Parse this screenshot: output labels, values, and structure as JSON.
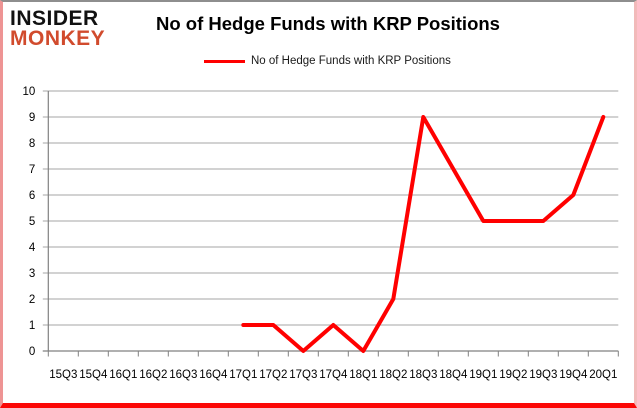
{
  "logo": {
    "line1": "INSIDER",
    "line2": "MONKEY"
  },
  "header": {
    "title": "No of Hedge Funds with KRP Positions"
  },
  "legend": {
    "label": "No of Hedge Funds with KRP Positions"
  },
  "colors": {
    "line": "#ff0000",
    "logo_accent": "#d14b2d",
    "grid": "#a6a6a6",
    "axis": "#808080",
    "border_bottom": "#fb0705"
  },
  "chart_data": {
    "type": "line",
    "title": "No of Hedge Funds with KRP Positions",
    "xlabel": "",
    "ylabel": "",
    "ylim": [
      0,
      10
    ],
    "ytick_step": 1,
    "grid": true,
    "legend_position": "top",
    "categories": [
      "15Q3",
      "15Q4",
      "16Q1",
      "16Q2",
      "16Q3",
      "16Q4",
      "17Q1",
      "17Q2",
      "17Q3",
      "17Q4",
      "18Q1",
      "18Q2",
      "18Q3",
      "18Q4",
      "19Q1",
      "19Q2",
      "19Q3",
      "19Q4",
      "20Q1"
    ],
    "series": [
      {
        "name": "No of Hedge Funds with KRP Positions",
        "color": "#ff0000",
        "values": [
          null,
          null,
          null,
          null,
          null,
          null,
          1,
          1,
          0,
          1,
          0,
          2,
          9,
          7,
          5,
          5,
          5,
          6,
          9
        ]
      }
    ]
  }
}
